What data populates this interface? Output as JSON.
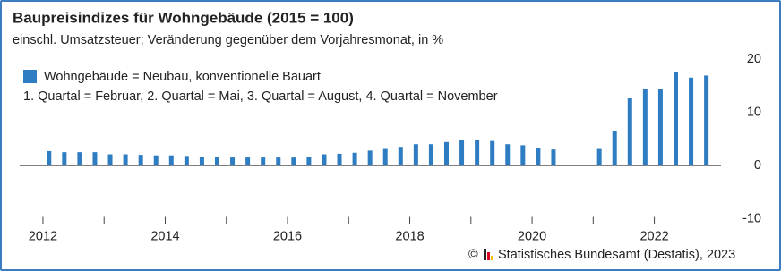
{
  "chart_data": {
    "type": "bar",
    "title": "Baupreisindizes für Wohngebäude (2015 = 100)",
    "subtitle": "einschl. Umsatzsteuer; Veränderung gegenüber dem Vorjahresmonat, in %",
    "note": "1. Quartal = Februar, 2. Quartal = Mai, 3. Quartal = August, 4. Quartal = November",
    "copyright": "©",
    "source": "Statistisches Bundesamt (Destatis), 2023",
    "x": [
      2012.1,
      2012.35,
      2012.6,
      2012.85,
      2013.1,
      2013.35,
      2013.6,
      2013.85,
      2014.1,
      2014.35,
      2014.6,
      2014.85,
      2015.1,
      2015.35,
      2015.6,
      2015.85,
      2016.1,
      2016.35,
      2016.6,
      2016.85,
      2017.1,
      2017.35,
      2017.6,
      2017.85,
      2018.1,
      2018.35,
      2018.6,
      2018.85,
      2019.1,
      2019.35,
      2019.6,
      2019.85,
      2020.1,
      2020.35,
      2020.6,
      2020.85,
      2021.1,
      2021.35,
      2021.6,
      2021.85,
      2022.1,
      2022.35,
      2022.6,
      2022.85
    ],
    "series": [
      {
        "name": "Wohngebäude = Neubau, konventionelle Bauart",
        "color": "#2e7dc2",
        "values": [
          2.7,
          2.5,
          2.5,
          2.5,
          2.1,
          2.1,
          2.0,
          1.9,
          1.9,
          1.8,
          1.6,
          1.6,
          1.5,
          1.5,
          1.5,
          1.5,
          1.5,
          1.6,
          2.1,
          2.2,
          2.4,
          2.8,
          3.1,
          3.5,
          4.0,
          4.0,
          4.4,
          4.8,
          4.8,
          4.6,
          4.0,
          3.8,
          3.3,
          3.0,
          null,
          null,
          3.1,
          6.4,
          12.6,
          14.4,
          14.3,
          17.6,
          16.5,
          16.9
        ]
      }
    ],
    "xlim": [
      2011.62,
      2023.09
    ],
    "xticks": [
      2012,
      2014,
      2016,
      2018,
      2020,
      2022
    ],
    "x_minor_ticks": [
      2013,
      2015,
      2017,
      2019,
      2021
    ],
    "ylim": [
      -11,
      21
    ],
    "yticks": [
      -10,
      0,
      10,
      20
    ],
    "grid": false
  }
}
